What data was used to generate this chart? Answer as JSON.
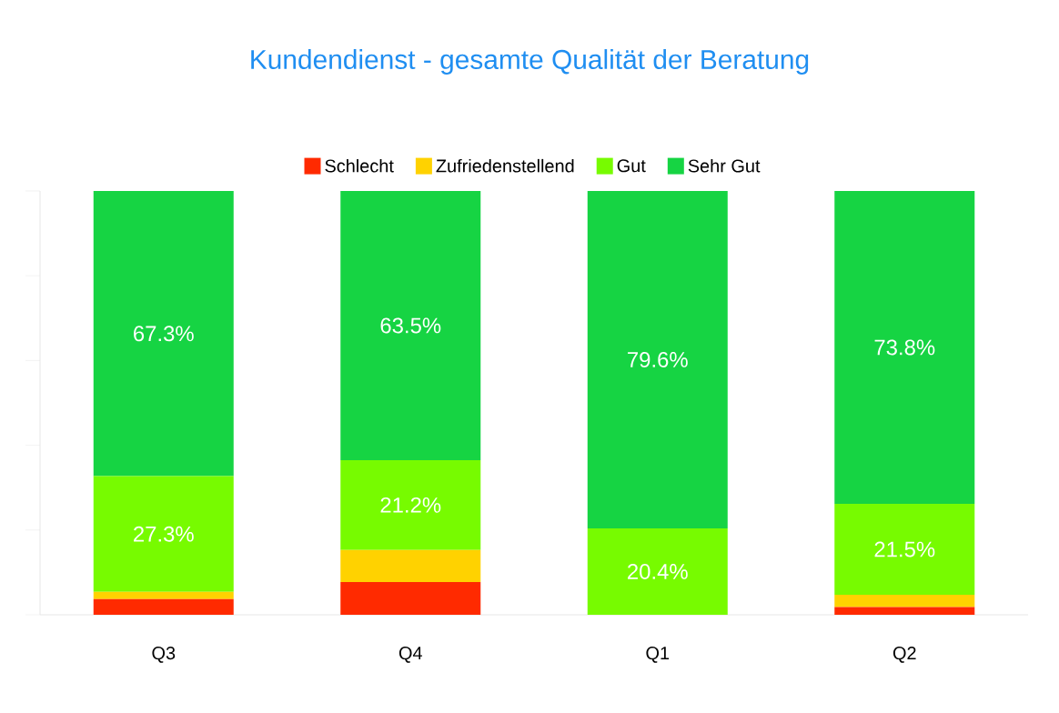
{
  "chart_data": {
    "type": "bar",
    "title": "Kundendienst - gesamte Qualität der Beratung",
    "stacked": true,
    "legend": "top",
    "tick_labels": "x",
    "categories": [
      "Q3",
      "Q4",
      "Q1",
      "Q2"
    ],
    "ylim": [
      0,
      100
    ],
    "series": [
      {
        "name": "Schlecht",
        "color": "#ff2a00",
        "values": [
          3.7,
          7.7,
          0,
          1.8
        ]
      },
      {
        "name": "Zufriedenstellend",
        "color": "#ffd200",
        "values": [
          1.7,
          7.6,
          0,
          2.9
        ]
      },
      {
        "name": "Gut",
        "color": "#77fb00",
        "values": [
          27.3,
          21.2,
          20.4,
          21.5
        ],
        "value_labels": [
          "27.3%",
          "21.2%",
          "20.4%",
          "21.5%"
        ]
      },
      {
        "name": "Sehr Gut",
        "color": "#16d443",
        "values": [
          67.3,
          63.5,
          79.6,
          73.8
        ],
        "value_labels": [
          "67.3%",
          "63.5%",
          "79.6%",
          "73.8%"
        ]
      }
    ]
  }
}
